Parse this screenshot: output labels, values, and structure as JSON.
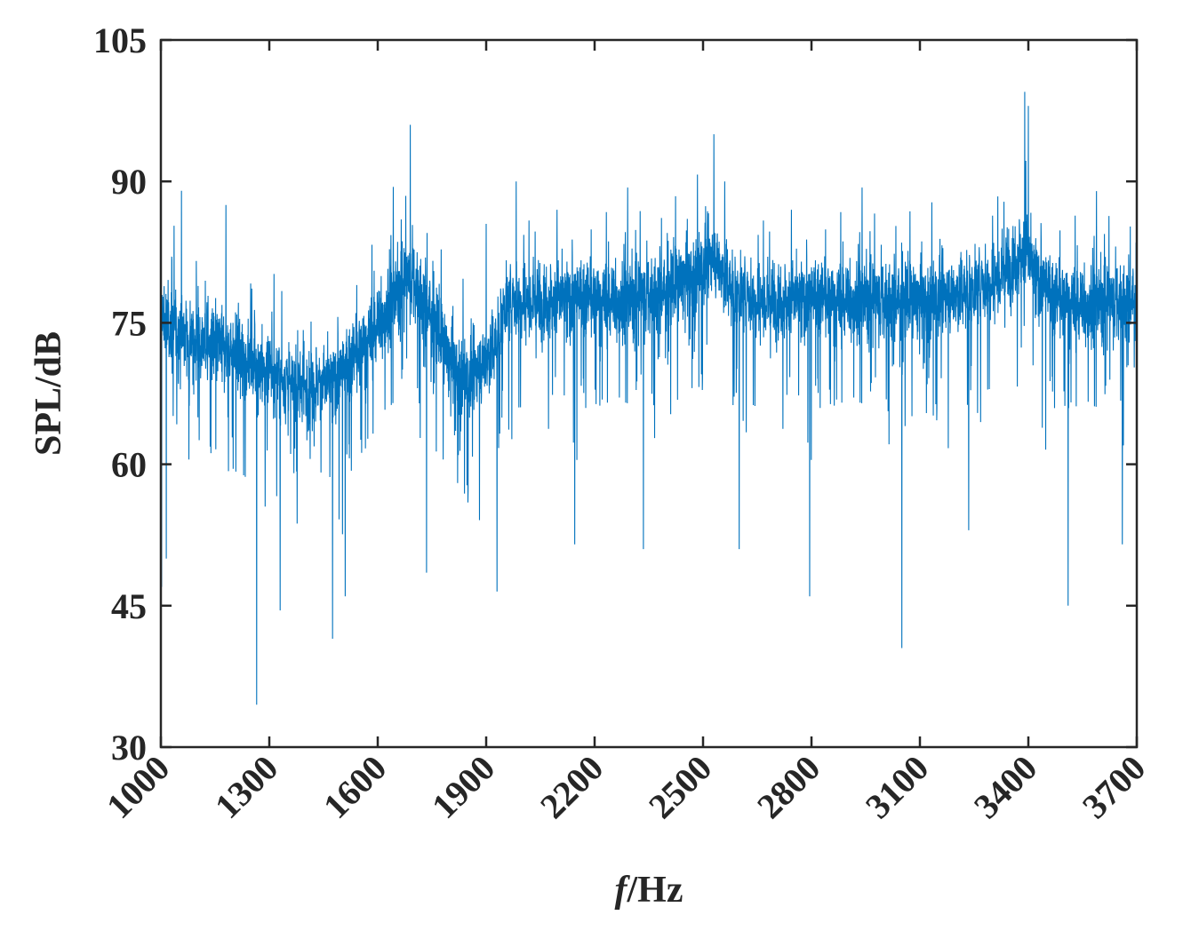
{
  "chart_data": {
    "type": "line",
    "title": "",
    "xlabel_italic": "f",
    "xlabel_rest": "/Hz",
    "ylabel": "SPL/dB",
    "xlim": [
      1000,
      3700
    ],
    "ylim": [
      30,
      105
    ],
    "xticks": [
      1000,
      1300,
      1600,
      1900,
      2200,
      2500,
      2800,
      3100,
      3400,
      3700
    ],
    "yticks": [
      30,
      45,
      60,
      75,
      90,
      105
    ],
    "grid": false,
    "colors": {
      "line": "#0072BD",
      "axis": "#262626",
      "background": "#ffffff"
    },
    "series": [
      {
        "sampling": "noisy spectrum; trend is the local mean SPL in dB",
        "trend": [
          [
            1000,
            75
          ],
          [
            1050,
            74
          ],
          [
            1100,
            73
          ],
          [
            1150,
            72.5
          ],
          [
            1200,
            72
          ],
          [
            1250,
            71
          ],
          [
            1300,
            69.5
          ],
          [
            1350,
            68.5
          ],
          [
            1400,
            68
          ],
          [
            1450,
            68.5
          ],
          [
            1500,
            69.5
          ],
          [
            1550,
            72
          ],
          [
            1600,
            75
          ],
          [
            1650,
            78
          ],
          [
            1690,
            80
          ],
          [
            1720,
            78
          ],
          [
            1760,
            75
          ],
          [
            1800,
            71
          ],
          [
            1850,
            69
          ],
          [
            1900,
            71
          ],
          [
            1930,
            73
          ],
          [
            1950,
            77
          ],
          [
            2000,
            77.5
          ],
          [
            2100,
            77.5
          ],
          [
            2200,
            77.5
          ],
          [
            2300,
            77.5
          ],
          [
            2400,
            78.5
          ],
          [
            2500,
            81
          ],
          [
            2530,
            82
          ],
          [
            2580,
            78.5
          ],
          [
            2650,
            77.5
          ],
          [
            2800,
            77.5
          ],
          [
            3000,
            77.5
          ],
          [
            3100,
            77.5
          ],
          [
            3200,
            78
          ],
          [
            3300,
            79.5
          ],
          [
            3370,
            82
          ],
          [
            3390,
            83
          ],
          [
            3420,
            80
          ],
          [
            3470,
            77.5
          ],
          [
            3550,
            77
          ],
          [
            3700,
            77.5
          ]
        ],
        "peaks": [
          [
            1002,
            87
          ],
          [
            1057,
            89
          ],
          [
            1180,
            87.5
          ],
          [
            1690,
            96
          ],
          [
            1900,
            85.5
          ],
          [
            1983,
            90
          ],
          [
            2530,
            95
          ],
          [
            2560,
            90
          ],
          [
            3390,
            99.5
          ],
          [
            3400,
            98
          ]
        ],
        "dips": [
          [
            1002,
            47
          ],
          [
            1015,
            50
          ],
          [
            1265,
            34.5
          ],
          [
            1330,
            44.5
          ],
          [
            1475,
            41.5
          ],
          [
            1510,
            46
          ],
          [
            1735,
            48.5
          ],
          [
            1930,
            46.5
          ],
          [
            2145,
            51.5
          ],
          [
            2335,
            51
          ],
          [
            2600,
            51
          ],
          [
            2795,
            46
          ],
          [
            3050,
            40.5
          ],
          [
            3235,
            53
          ],
          [
            3510,
            45
          ],
          [
            3660,
            51.5
          ]
        ]
      }
    ]
  }
}
